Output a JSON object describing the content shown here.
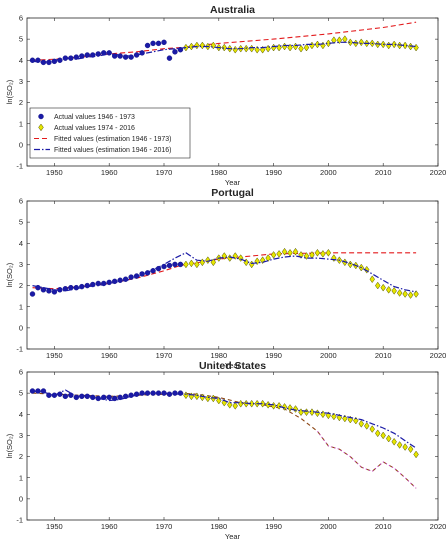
{
  "colors": {
    "actual_early": "#1a1aa6",
    "actual_late_fill": "#e6e600",
    "actual_late_edge": "#4d4d00",
    "fit_short": "#e31a1c",
    "fit_full": "#1a1aa6",
    "fit_us_short": "#8b4513",
    "fit_us_short_tail": "#cc44cc"
  },
  "legend": {
    "placement": "lower-left of first panel",
    "items": [
      {
        "label": "Actual values 1946 - 1973"
      },
      {
        "label": "Actual values 1974 - 2016"
      },
      {
        "label": "Fitted values (estimation 1946 - 1973)"
      },
      {
        "label": "Fitted values (estimation 1946 - 2016)"
      }
    ]
  },
  "chart_data": [
    {
      "type": "line",
      "title": "Australia",
      "xlabel": "Year",
      "ylabel": "ln(SO₂)",
      "xlim": [
        1945,
        2020
      ],
      "ylim": [
        -1,
        6
      ],
      "xticks": [
        1950,
        1960,
        1970,
        1980,
        1990,
        2000,
        2010,
        2020
      ],
      "yticks": [
        -1,
        0,
        1,
        2,
        3,
        4,
        5,
        6
      ],
      "grid": false,
      "actual_early": {
        "x": [
          1946,
          1947,
          1948,
          1949,
          1950,
          1951,
          1952,
          1953,
          1954,
          1955,
          1956,
          1957,
          1958,
          1959,
          1960,
          1961,
          1962,
          1963,
          1964,
          1965,
          1966,
          1967,
          1968,
          1969,
          1970,
          1971,
          1972,
          1973
        ],
        "y": [
          4.0,
          4.0,
          3.9,
          3.9,
          3.95,
          4.0,
          4.1,
          4.1,
          4.15,
          4.2,
          4.25,
          4.25,
          4.3,
          4.35,
          4.35,
          4.2,
          4.2,
          4.15,
          4.15,
          4.25,
          4.35,
          4.7,
          4.8,
          4.8,
          4.85,
          4.1,
          4.4,
          4.5
        ]
      },
      "actual_late": {
        "x": [
          1974,
          1975,
          1976,
          1977,
          1978,
          1979,
          1980,
          1981,
          1982,
          1983,
          1984,
          1985,
          1986,
          1987,
          1988,
          1989,
          1990,
          1991,
          1992,
          1993,
          1994,
          1995,
          1996,
          1997,
          1998,
          1999,
          2000,
          2001,
          2002,
          2003,
          2004,
          2005,
          2006,
          2007,
          2008,
          2009,
          2010,
          2011,
          2012,
          2013,
          2014,
          2015,
          2016
        ],
        "y": [
          4.6,
          4.65,
          4.7,
          4.7,
          4.65,
          4.7,
          4.6,
          4.6,
          4.55,
          4.5,
          4.55,
          4.55,
          4.55,
          4.5,
          4.5,
          4.55,
          4.6,
          4.6,
          4.65,
          4.6,
          4.65,
          4.55,
          4.6,
          4.7,
          4.75,
          4.7,
          4.8,
          4.95,
          4.95,
          5.0,
          4.85,
          4.8,
          4.85,
          4.8,
          4.8,
          4.75,
          4.75,
          4.7,
          4.75,
          4.7,
          4.7,
          4.65,
          4.6
        ]
      },
      "fit_short": {
        "x": [
          1946,
          1950,
          1955,
          1960,
          1965,
          1970,
          1973,
          1980,
          1990,
          2000,
          2010,
          2016
        ],
        "y": [
          4.0,
          4.05,
          4.15,
          4.3,
          4.4,
          4.55,
          4.6,
          4.8,
          5.0,
          5.25,
          5.55,
          5.8
        ]
      },
      "fit_full": {
        "x": [
          1946,
          1948,
          1950,
          1952,
          1954,
          1956,
          1958,
          1960,
          1962,
          1964,
          1966,
          1968,
          1970,
          1972,
          1974,
          1976,
          1978,
          1980,
          1982,
          1984,
          1986,
          1988,
          1990,
          1992,
          1994,
          1996,
          1998,
          2000,
          2002,
          2004,
          2006,
          2008,
          2010,
          2012,
          2014,
          2016
        ],
        "y": [
          3.95,
          3.9,
          4.0,
          4.1,
          4.05,
          4.15,
          4.2,
          4.3,
          4.25,
          4.2,
          4.3,
          4.4,
          4.5,
          4.55,
          4.6,
          4.65,
          4.65,
          4.6,
          4.55,
          4.55,
          4.6,
          4.6,
          4.65,
          4.7,
          4.7,
          4.75,
          4.75,
          4.8,
          4.85,
          4.85,
          4.8,
          4.8,
          4.75,
          4.75,
          4.7,
          4.65
        ]
      }
    },
    {
      "type": "line",
      "title": "Portugal",
      "xlabel": "Year",
      "ylabel": "ln(SO₂)",
      "xlim": [
        1945,
        2020
      ],
      "ylim": [
        -1,
        6
      ],
      "xticks": [
        1950,
        1960,
        1970,
        1980,
        1990,
        2000,
        2010,
        2020
      ],
      "yticks": [
        -1,
        0,
        1,
        2,
        3,
        4,
        5,
        6
      ],
      "grid": false,
      "actual_early": {
        "x": [
          1946,
          1947,
          1948,
          1949,
          1950,
          1951,
          1952,
          1953,
          1954,
          1955,
          1956,
          1957,
          1958,
          1959,
          1960,
          1961,
          1962,
          1963,
          1964,
          1965,
          1966,
          1967,
          1968,
          1969,
          1970,
          1971,
          1972,
          1973
        ],
        "y": [
          1.6,
          1.9,
          1.8,
          1.75,
          1.7,
          1.8,
          1.85,
          1.9,
          1.9,
          1.95,
          2.0,
          2.05,
          2.1,
          2.1,
          2.15,
          2.2,
          2.25,
          2.3,
          2.4,
          2.45,
          2.55,
          2.6,
          2.7,
          2.8,
          2.9,
          2.95,
          3.0,
          3.0
        ]
      },
      "actual_late": {
        "x": [
          1974,
          1975,
          1976,
          1977,
          1978,
          1979,
          1980,
          1981,
          1982,
          1983,
          1984,
          1985,
          1986,
          1987,
          1988,
          1989,
          1990,
          1991,
          1992,
          1993,
          1994,
          1995,
          1996,
          1997,
          1998,
          1999,
          2000,
          2001,
          2002,
          2003,
          2004,
          2005,
          2006,
          2007,
          2008,
          2009,
          2010,
          2011,
          2012,
          2013,
          2014,
          2015,
          2016
        ],
        "y": [
          3.0,
          3.05,
          3.0,
          3.1,
          3.2,
          3.1,
          3.3,
          3.4,
          3.3,
          3.4,
          3.3,
          3.1,
          3.0,
          3.15,
          3.2,
          3.3,
          3.45,
          3.5,
          3.6,
          3.55,
          3.6,
          3.45,
          3.4,
          3.45,
          3.55,
          3.5,
          3.55,
          3.3,
          3.2,
          3.1,
          3.0,
          2.95,
          2.85,
          2.75,
          2.3,
          2.0,
          1.9,
          1.8,
          1.75,
          1.65,
          1.6,
          1.55,
          1.6
        ]
      },
      "fit_short": {
        "x": [
          1946,
          1950,
          1955,
          1960,
          1965,
          1970,
          1973,
          1980,
          1990,
          2000,
          2010,
          2016
        ],
        "y": [
          1.9,
          1.85,
          1.95,
          2.1,
          2.35,
          2.7,
          2.95,
          3.25,
          3.5,
          3.55,
          3.55,
          3.55
        ]
      },
      "fit_full": {
        "x": [
          1946,
          1948,
          1950,
          1952,
          1954,
          1956,
          1958,
          1960,
          1962,
          1964,
          1966,
          1968,
          1970,
          1972,
          1974,
          1976,
          1978,
          1980,
          1982,
          1984,
          1986,
          1988,
          1990,
          1992,
          1994,
          1996,
          1998,
          2000,
          2002,
          2004,
          2006,
          2008,
          2010,
          2012,
          2014,
          2016
        ],
        "y": [
          2.0,
          1.9,
          1.8,
          1.75,
          1.85,
          1.95,
          2.0,
          2.1,
          2.2,
          2.3,
          2.5,
          2.75,
          3.0,
          3.3,
          3.55,
          3.2,
          3.15,
          3.3,
          3.35,
          3.25,
          3.05,
          3.1,
          3.25,
          3.35,
          3.4,
          3.3,
          3.3,
          3.25,
          3.2,
          3.05,
          2.85,
          2.55,
          2.25,
          1.95,
          1.8,
          1.7
        ]
      }
    },
    {
      "type": "line",
      "title": "United States",
      "xlabel": "Year",
      "ylabel": "ln(SO₂)",
      "xlim": [
        1945,
        2020
      ],
      "ylim": [
        -1,
        6
      ],
      "xticks": [
        1950,
        1960,
        1970,
        1980,
        1990,
        2000,
        2010,
        2020
      ],
      "yticks": [
        -1,
        0,
        1,
        2,
        3,
        4,
        5,
        6
      ],
      "grid": false,
      "actual_early": {
        "x": [
          1946,
          1947,
          1948,
          1949,
          1950,
          1951,
          1952,
          1953,
          1954,
          1955,
          1956,
          1957,
          1958,
          1959,
          1960,
          1961,
          1962,
          1963,
          1964,
          1965,
          1966,
          1967,
          1968,
          1969,
          1970,
          1971,
          1972,
          1973
        ],
        "y": [
          5.1,
          5.1,
          5.1,
          4.9,
          4.9,
          4.95,
          4.85,
          4.9,
          4.8,
          4.85,
          4.85,
          4.8,
          4.75,
          4.8,
          4.8,
          4.75,
          4.8,
          4.85,
          4.9,
          4.95,
          5.0,
          5.0,
          5.0,
          5.0,
          5.0,
          4.95,
          5.0,
          5.0
        ]
      },
      "actual_late": {
        "x": [
          1974,
          1975,
          1976,
          1977,
          1978,
          1979,
          1980,
          1981,
          1982,
          1983,
          1984,
          1985,
          1986,
          1987,
          1988,
          1989,
          1990,
          1991,
          1992,
          1993,
          1994,
          1995,
          1996,
          1997,
          1998,
          1999,
          2000,
          2001,
          2002,
          2003,
          2004,
          2005,
          2006,
          2007,
          2008,
          2009,
          2010,
          2011,
          2012,
          2013,
          2014,
          2015,
          2016
        ],
        "y": [
          4.9,
          4.85,
          4.85,
          4.8,
          4.75,
          4.75,
          4.65,
          4.55,
          4.45,
          4.4,
          4.5,
          4.5,
          4.5,
          4.5,
          4.5,
          4.45,
          4.4,
          4.4,
          4.35,
          4.3,
          4.25,
          4.1,
          4.1,
          4.1,
          4.05,
          4.0,
          3.95,
          3.9,
          3.85,
          3.8,
          3.75,
          3.7,
          3.55,
          3.45,
          3.3,
          3.1,
          3.0,
          2.85,
          2.7,
          2.55,
          2.45,
          2.35,
          2.1
        ]
      },
      "fit_short": {
        "x": [
          1946,
          1950,
          1955,
          1960,
          1965,
          1970,
          1973,
          1976,
          1980,
          1984,
          1988,
          1992,
          1995,
          1998,
          2000,
          2002,
          2004,
          2006,
          2008,
          2010,
          2012,
          2014,
          2016
        ],
        "y": [
          5.0,
          4.95,
          4.9,
          4.85,
          4.9,
          4.95,
          5.0,
          4.95,
          4.8,
          4.55,
          4.45,
          4.25,
          3.8,
          3.2,
          2.5,
          2.35,
          2.0,
          1.5,
          1.3,
          1.75,
          1.45,
          1.0,
          0.5
        ]
      },
      "fit_full": {
        "x": [
          1946,
          1948,
          1950,
          1952,
          1954,
          1956,
          1958,
          1960,
          1962,
          1964,
          1966,
          1968,
          1970,
          1972,
          1974,
          1976,
          1978,
          1980,
          1982,
          1984,
          1986,
          1988,
          1990,
          1992,
          1994,
          1996,
          1998,
          2000,
          2002,
          2004,
          2006,
          2008,
          2010,
          2012,
          2014,
          2016
        ],
        "y": [
          5.1,
          5.05,
          4.9,
          5.15,
          4.85,
          4.9,
          4.75,
          4.65,
          4.7,
          4.85,
          4.95,
          5.0,
          5.0,
          4.95,
          4.95,
          4.9,
          4.8,
          4.75,
          4.55,
          4.55,
          4.5,
          4.5,
          4.45,
          4.3,
          4.2,
          4.15,
          4.1,
          4.05,
          3.95,
          3.85,
          3.75,
          3.55,
          3.35,
          3.1,
          2.75,
          2.4
        ]
      }
    }
  ]
}
